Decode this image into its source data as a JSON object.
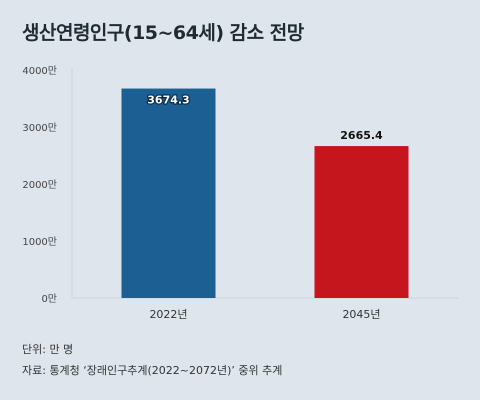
{
  "chart_data": {
    "type": "bar",
    "title": "생산연령인구(15~64세) 감소 전망",
    "categories": [
      "2022년",
      "2045년"
    ],
    "values": [
      3674.3,
      2665.4
    ],
    "value_labels": [
      "3674.3",
      "2665.4"
    ],
    "bar_colors": [
      "#1b5f93",
      "#c4161c"
    ],
    "ylim": [
      0,
      4000
    ],
    "yticks": [
      0,
      1000,
      2000,
      3000,
      4000
    ],
    "ytick_labels": [
      "0만",
      "1000만",
      "2000만",
      "3000만",
      "4000만"
    ],
    "xlabel": "",
    "ylabel": "",
    "grid": false,
    "legend": "none"
  },
  "notes": {
    "unit": "단위: 만 명",
    "source": "자료: 통계청 ‘장래인구추계(2022~2072년)’ 중위 추계"
  },
  "colors": {
    "background": "#dfe5ec",
    "axis": "#c9d3dd",
    "value_label_dark": "#111111",
    "value_label_light": "#ffffff"
  }
}
